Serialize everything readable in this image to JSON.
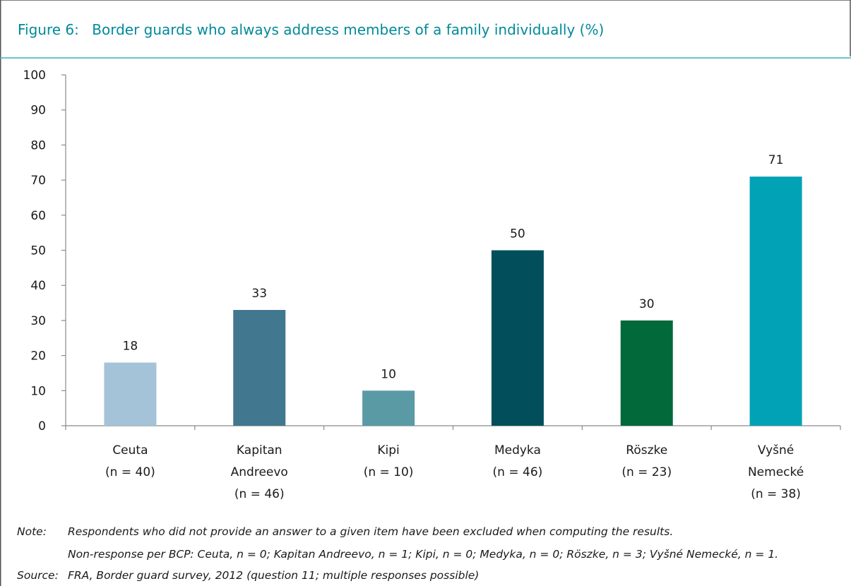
{
  "figure": {
    "number": "Figure 6:",
    "title": "Border guards who always address members of a family individually (%)"
  },
  "chart_data": {
    "type": "bar",
    "categories": [
      [
        "Ceuta",
        "(n = 40)"
      ],
      [
        "Kapitan",
        "Andreevo",
        "(n = 46)"
      ],
      [
        "Kipi",
        "(n = 10)"
      ],
      [
        "Medyka",
        "(n = 46)"
      ],
      [
        "Röszke",
        "(n = 23)"
      ],
      [
        "Vyšné",
        "Nemecké",
        "(n = 38)"
      ]
    ],
    "values": [
      18,
      33,
      10,
      50,
      30,
      71
    ],
    "data_labels": [
      "18",
      "33",
      "10",
      "50",
      "30",
      "71"
    ],
    "bar_colors": [
      "#a5c3d8",
      "#41778f",
      "#5a9aa5",
      "#024f5b",
      "#02693a",
      "#01a2b5"
    ],
    "ylim": [
      0,
      100
    ],
    "yticks": [
      0,
      10,
      20,
      30,
      40,
      50,
      60,
      70,
      80,
      90,
      100
    ],
    "grid": false,
    "xlabel": "",
    "ylabel": ""
  },
  "note": {
    "label": "Note:",
    "line1": "Respondents who did not provide an answer to a given item have been excluded when computing the results.",
    "line2": "Non-response per BCP: Ceuta, n = 0; Kapitan Andreevo, n = 1; Kipi, n = 0; Medyka, n = 0; Röszke, n = 3; Vyšné Nemecké, n = 1."
  },
  "source": {
    "label": "Source:",
    "text": "FRA, Border guard survey, 2012 (question 11; multiple responses possible)"
  },
  "colors": {
    "frame": "#555555",
    "title": "#008a9a",
    "rule": "#3ab0c0"
  }
}
